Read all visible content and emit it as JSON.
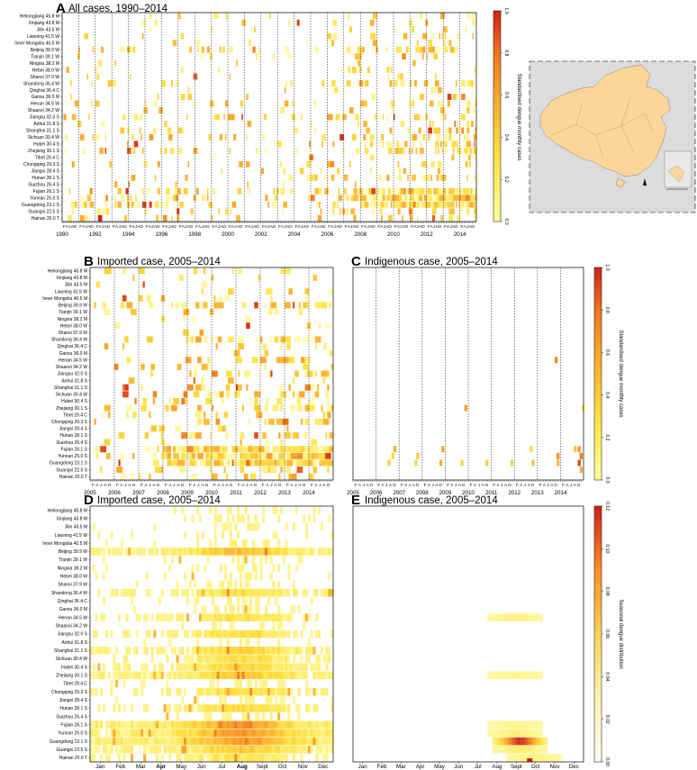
{
  "provinces": [
    "Heilongjiang 45.8 M",
    "Xinjiang 43.8 M",
    "Jilin 43.5 M",
    "Liaoning 41.5 W",
    "Inner Mongolia 40.5 M",
    "Beijing 39.9 W",
    "Tianjin 39.1 W",
    "Ningxia 38.2 M",
    "Hebei 38.0 W",
    "Shanxi 37.9 W",
    "Shandong 36.4 W",
    "Qinghai 36.4 C",
    "Gansu 36.0 M",
    "Henan 34.5 W",
    "Shaanxi 34.2 W",
    "Jiangsu 32.0 S",
    "Anhui 31.8 S",
    "Shanghai 31.1 S",
    "Sichuan 30.4 W",
    "Hubei 30.4 S",
    "Zhejiang 30.1 S",
    "Tibet 29.4 C",
    "Chongqing 29.3 S",
    "Jiangxi 28.4 S",
    "Hunan 28.1 S",
    "Guizhou 26.4 S",
    "Fujian 26.1 S",
    "Yunnan 25.0 S",
    "Guangdong 23.1 S",
    "Guangxi 22.5 S",
    "Hainan 20.0 T"
  ],
  "month_initials": [
    "F",
    "A",
    "J",
    "A",
    "O"
  ],
  "colors": {
    "low": "#ffffd4",
    "mid1": "#fee391",
    "mid2": "#fec44f",
    "mid3": "#fe9929",
    "mid4": "#ec7014",
    "high": "#cc2b1a",
    "grid": "#000000"
  },
  "chart_data": [
    {
      "panel": "A",
      "type": "heatmap",
      "title": "All cases, 1990–2014",
      "x_years": [
        "1990",
        "1992",
        "1994",
        "1996",
        "1998",
        "2000",
        "2002",
        "2004",
        "2006",
        "2008",
        "2010",
        "2012",
        "2014"
      ],
      "y": "provinces",
      "colorbar": {
        "label": "Standardised dengue monthly cases",
        "ticks": [
          "0.0",
          "0.2",
          "0.4",
          "0.6",
          "0.8",
          "1.0"
        ],
        "range": [
          0,
          1
        ]
      }
    },
    {
      "panel": "B",
      "type": "heatmap",
      "title": "Imported case, 2005–2014",
      "x_years": [
        "2005",
        "2006",
        "2007",
        "2008",
        "2009",
        "2010",
        "2011",
        "2012",
        "2013",
        "2014"
      ],
      "y": "provinces"
    },
    {
      "panel": "C",
      "type": "heatmap",
      "title": "Indigenous case, 2005–2014",
      "x_years": [
        "2005",
        "2006",
        "2007",
        "2008",
        "2009",
        "2010",
        "2011",
        "2012",
        "2013",
        "2014"
      ],
      "colorbar": {
        "label": "Standardised dengue monthly cases",
        "ticks": [
          "0.0",
          "0.2",
          "0.4",
          "0.6",
          "0.8",
          "1.0"
        ],
        "range": [
          0,
          1
        ]
      }
    },
    {
      "panel": "D",
      "type": "heatmap",
      "title": "Imported case, 2005–2014",
      "x_months": [
        "Jan",
        "Feb",
        "Mar",
        "Apr",
        "May",
        "Jun",
        "Jul",
        "Aug",
        "Sept",
        "Oct",
        "Nov",
        "Dec"
      ],
      "y": "provinces"
    },
    {
      "panel": "E",
      "type": "heatmap",
      "title": "Indigenous case, 2005–2014",
      "x_months": [
        "Jan",
        "Feb",
        "Mar",
        "Apr",
        "May",
        "Jun",
        "Jul",
        "Aug",
        "Sept",
        "Oct",
        "Nov",
        "Dec"
      ],
      "colorbar": {
        "label": "Seasonal dengue distribution",
        "ticks": [
          "0.00",
          "0.02",
          "0.04",
          "0.06",
          "0.08",
          "0.10",
          "0.12"
        ],
        "range": [
          0,
          0.12
        ]
      }
    }
  ]
}
